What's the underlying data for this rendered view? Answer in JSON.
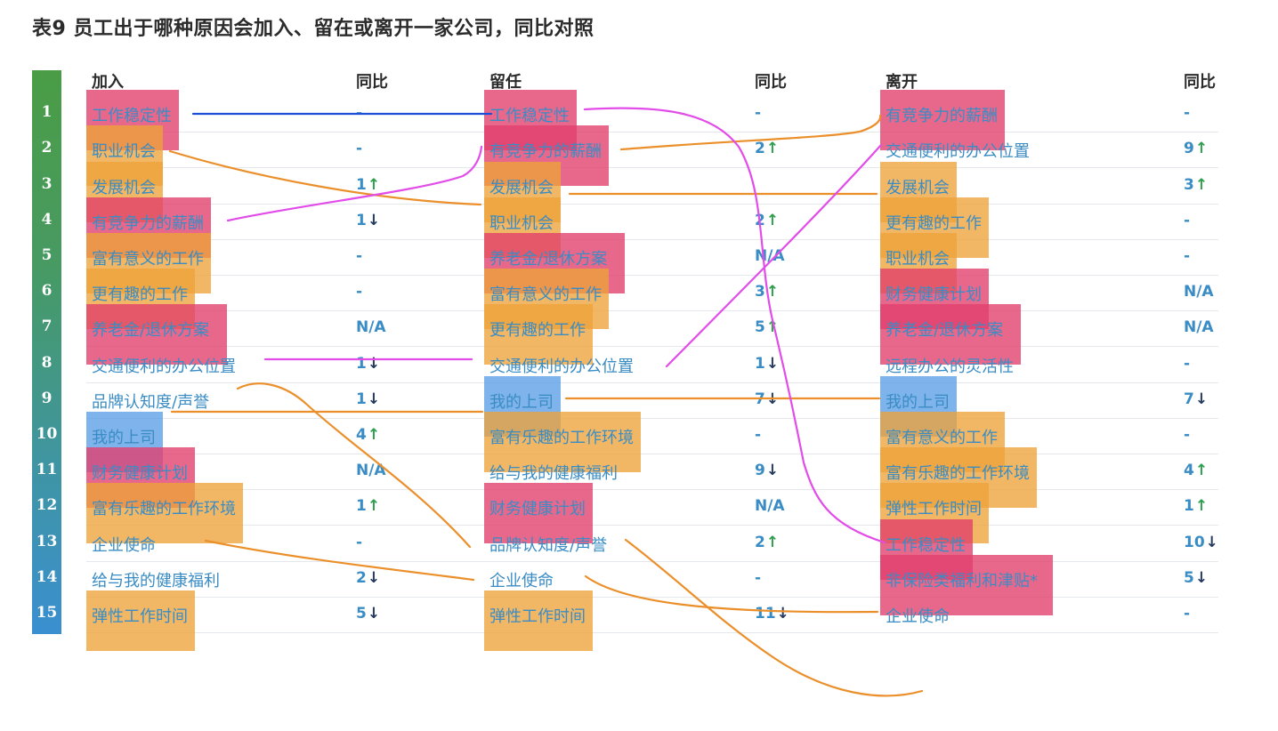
{
  "title": "表9 员工出于哪种原因会加入、留在或离开一家公司，同比对照",
  "chart_data": {
    "type": "table",
    "headers": {
      "join": "加入",
      "join_yoy": "同比",
      "stay": "留任",
      "stay_yoy": "同比",
      "leave": "离开",
      "leave_yoy": "同比"
    },
    "ranks": [
      "1",
      "2",
      "3",
      "4",
      "5",
      "6",
      "7",
      "8",
      "9",
      "10",
      "11",
      "12",
      "13",
      "14",
      "15"
    ],
    "join": [
      {
        "label": "工作稳定性",
        "yoy": "-",
        "dir": "",
        "hl": "#e23d6b"
      },
      {
        "label": "职业机会",
        "yoy": "-",
        "dir": "",
        "hl": "#eda33a"
      },
      {
        "label": "发展机会",
        "yoy": "1",
        "dir": "up",
        "hl": "#eda33a"
      },
      {
        "label": "有竞争力的薪酬",
        "yoy": "1",
        "dir": "down",
        "hl": "#e23d6b"
      },
      {
        "label": "富有意义的工作",
        "yoy": "-",
        "dir": "",
        "hl": "#eda33a"
      },
      {
        "label": "更有趣的工作",
        "yoy": "-",
        "dir": "",
        "hl": "#eda33a"
      },
      {
        "label": "养老金/退休方案",
        "yoy": "N/A",
        "dir": "",
        "hl": "#e23d6b"
      },
      {
        "label": "交通便利的办公位置",
        "yoy": "1",
        "dir": "down",
        "hl": ""
      },
      {
        "label": "品牌认知度/声誉",
        "yoy": "1",
        "dir": "down",
        "hl": ""
      },
      {
        "label": "我的上司",
        "yoy": "4",
        "dir": "up",
        "hl": "#5a9de6"
      },
      {
        "label": "财务健康计划",
        "yoy": "N/A",
        "dir": "",
        "hl": "#e23d6b"
      },
      {
        "label": "富有乐趣的工作环境",
        "yoy": "1",
        "dir": "up",
        "hl": "#eda33a"
      },
      {
        "label": "企业使命",
        "yoy": "-",
        "dir": "",
        "hl": ""
      },
      {
        "label": "给与我的健康福利",
        "yoy": "2",
        "dir": "down",
        "hl": ""
      },
      {
        "label": "弹性工作时间",
        "yoy": "5",
        "dir": "down",
        "hl": "#eda33a"
      }
    ],
    "stay": [
      {
        "label": "工作稳定性",
        "yoy": "-",
        "dir": "",
        "hl": "#e23d6b"
      },
      {
        "label": "有竞争力的薪酬",
        "yoy": "2",
        "dir": "up",
        "hl": "#e23d6b"
      },
      {
        "label": "发展机会",
        "yoy": "",
        "dir": "",
        "hl": "#eda33a"
      },
      {
        "label": "职业机会",
        "yoy": "2",
        "dir": "up",
        "hl": "#eda33a"
      },
      {
        "label": "养老金/退休方案",
        "yoy": "N/A",
        "dir": "",
        "hl": "#e23d6b"
      },
      {
        "label": "富有意义的工作",
        "yoy": "3",
        "dir": "up",
        "hl": "#eda33a"
      },
      {
        "label": "更有趣的工作",
        "yoy": "5",
        "dir": "up",
        "hl": "#eda33a"
      },
      {
        "label": "交通便利的办公位置",
        "yoy": "1",
        "dir": "down",
        "hl": ""
      },
      {
        "label": "我的上司",
        "yoy": "7",
        "dir": "down",
        "hl": "#5a9de6"
      },
      {
        "label": "富有乐趣的工作环境",
        "yoy": "-",
        "dir": "",
        "hl": "#eda33a"
      },
      {
        "label": "给与我的健康福利",
        "yoy": "9",
        "dir": "down",
        "hl": ""
      },
      {
        "label": "财务健康计划",
        "yoy": "N/A",
        "dir": "",
        "hl": "#e23d6b"
      },
      {
        "label": "品牌认知度/声誉",
        "yoy": "2",
        "dir": "up",
        "hl": ""
      },
      {
        "label": "企业使命",
        "yoy": "-",
        "dir": "",
        "hl": ""
      },
      {
        "label": "弹性工作时间",
        "yoy": "11",
        "dir": "down",
        "hl": "#eda33a"
      }
    ],
    "leave": [
      {
        "label": "有竞争力的薪酬",
        "yoy": "-",
        "dir": "",
        "hl": "#e23d6b"
      },
      {
        "label": "交通便利的办公位置",
        "yoy": "9",
        "dir": "up",
        "hl": ""
      },
      {
        "label": "发展机会",
        "yoy": "3",
        "dir": "up",
        "hl": "#eda33a"
      },
      {
        "label": "更有趣的工作",
        "yoy": "-",
        "dir": "",
        "hl": "#eda33a"
      },
      {
        "label": "职业机会",
        "yoy": "-",
        "dir": "",
        "hl": "#eda33a"
      },
      {
        "label": "财务健康计划",
        "yoy": "N/A",
        "dir": "",
        "hl": "#e23d6b"
      },
      {
        "label": "养老金/退休方案",
        "yoy": "N/A",
        "dir": "",
        "hl": "#e23d6b"
      },
      {
        "label": "远程办公的灵活性",
        "yoy": "-",
        "dir": "",
        "hl": ""
      },
      {
        "label": "我的上司",
        "yoy": "7",
        "dir": "down",
        "hl": "#5a9de6"
      },
      {
        "label": "富有意义的工作",
        "yoy": "-",
        "dir": "",
        "hl": "#eda33a"
      },
      {
        "label": "富有乐趣的工作环境",
        "yoy": "4",
        "dir": "up",
        "hl": "#eda33a"
      },
      {
        "label": "弹性工作时间",
        "yoy": "1",
        "dir": "up",
        "hl": "#eda33a"
      },
      {
        "label": "工作稳定性",
        "yoy": "10",
        "dir": "down",
        "hl": "#e23d6b"
      },
      {
        "label": "非保险类福利和津贴*",
        "yoy": "5",
        "dir": "down",
        "hl": "#e23d6b"
      },
      {
        "label": "企业使命",
        "yoy": "-",
        "dir": "",
        "hl": ""
      }
    ],
    "colors": {
      "text": "#3a8cc4",
      "up_arrow": "#2e9e4e",
      "down_arrow": "#243a5e",
      "highlight_red": "#e23d6b",
      "highlight_orange": "#eda33a",
      "highlight_blue": "#5a9de6",
      "connector_orange": "#eb8f2a",
      "connector_magenta": "#e24ce8",
      "connector_blue": "#1d4fd6"
    }
  }
}
